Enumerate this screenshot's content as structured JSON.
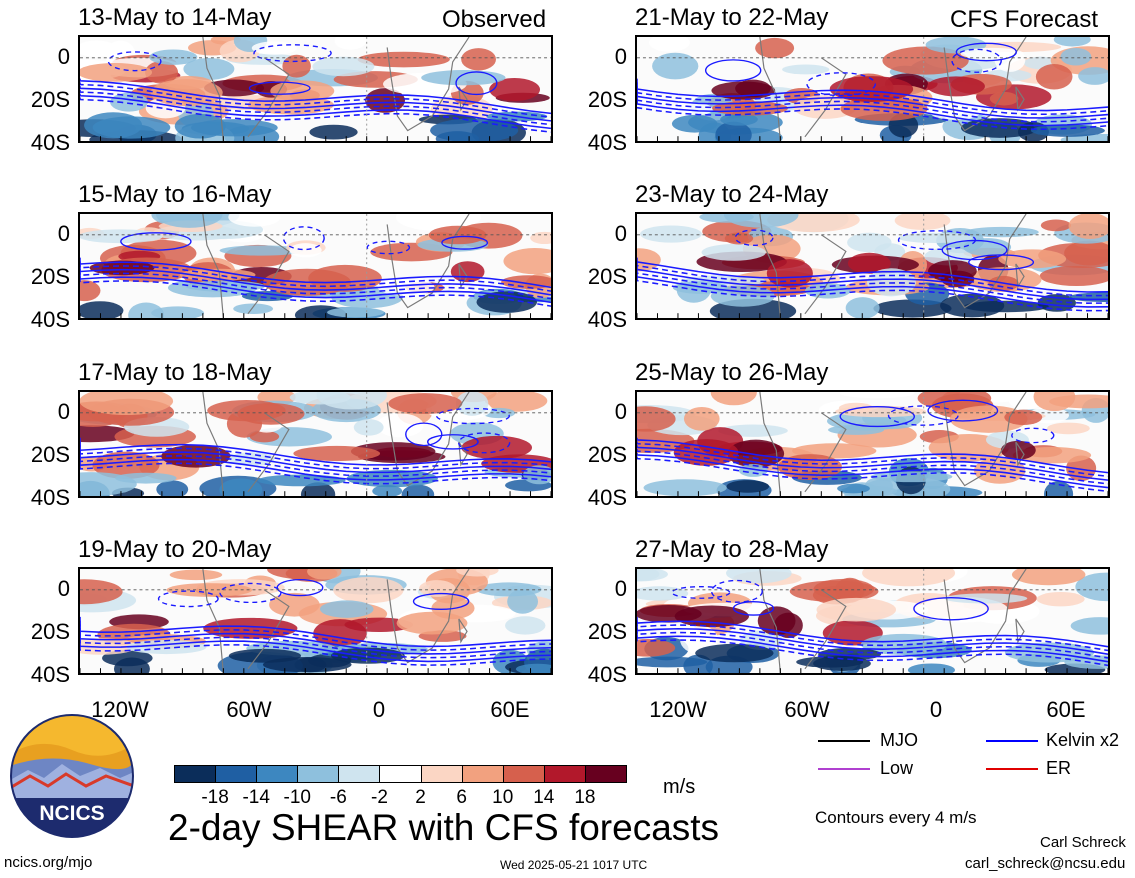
{
  "headers": {
    "left": "Observed",
    "right": "CFS Forecast"
  },
  "chart_data": {
    "type": "heatmap",
    "title": "2-day SHEAR with CFS forecasts",
    "variable_units": "m/s",
    "y_ticks": [
      "0",
      "20S",
      "40S"
    ],
    "x_ticks": [
      "120W",
      "60W",
      "0",
      "60E"
    ],
    "panels": [
      {
        "column": "observed",
        "label": "13-May to 14-May"
      },
      {
        "column": "observed",
        "label": "15-May to 16-May"
      },
      {
        "column": "observed",
        "label": "17-May to 18-May"
      },
      {
        "column": "observed",
        "label": "19-May to 20-May"
      },
      {
        "column": "forecast",
        "label": "21-May to 22-May"
      },
      {
        "column": "forecast",
        "label": "23-May to 24-May"
      },
      {
        "column": "forecast",
        "label": "25-May to 26-May"
      },
      {
        "column": "forecast",
        "label": "27-May to 28-May"
      }
    ],
    "colorbar": {
      "ticks": [
        "-18",
        "-14",
        "-10",
        "-6",
        "-2",
        "2",
        "6",
        "10",
        "14",
        "18"
      ],
      "colors": [
        "#0b2d5a",
        "#1f5fa3",
        "#3d87c0",
        "#8ec0dd",
        "#cfe4ef",
        "#ffffff",
        "#fbd6c4",
        "#f2a17f",
        "#d6604d",
        "#b2182b",
        "#67001f"
      ]
    }
  },
  "legend": {
    "items": [
      {
        "label": "MJO",
        "color": "#000000"
      },
      {
        "label": "Kelvin x2",
        "color": "#0000ff"
      },
      {
        "label": "Low",
        "color": "#b040d0"
      },
      {
        "label": "ER",
        "color": "#e00000"
      }
    ],
    "note": "Contours every 4 m/s"
  },
  "footer": {
    "site": "ncics.org/mjo",
    "timestamp": "Wed 2025-05-21 1017 UTC",
    "author": "Carl Schreck",
    "email": "carl_schreck@ncsu.edu",
    "logo_text": "NCICS"
  }
}
